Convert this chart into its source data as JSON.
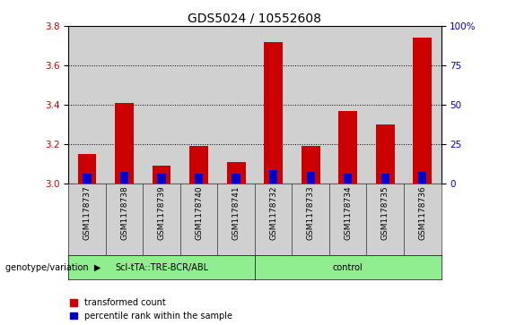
{
  "title": "GDS5024 / 10552608",
  "samples": [
    "GSM1178737",
    "GSM1178738",
    "GSM1178739",
    "GSM1178740",
    "GSM1178741",
    "GSM1178732",
    "GSM1178733",
    "GSM1178734",
    "GSM1178735",
    "GSM1178736"
  ],
  "red_values": [
    3.15,
    3.41,
    3.09,
    3.19,
    3.11,
    3.72,
    3.19,
    3.37,
    3.3,
    3.74
  ],
  "blue_values": [
    3.05,
    3.06,
    3.05,
    3.05,
    3.05,
    3.07,
    3.06,
    3.05,
    3.05,
    3.06
  ],
  "ymin": 3.0,
  "ymax": 3.8,
  "yticks": [
    3.0,
    3.2,
    3.4,
    3.6,
    3.8
  ],
  "y2ticks": [
    0,
    25,
    50,
    75,
    100
  ],
  "group1_label": "Scl-tTA::TRE-BCR/ABL",
  "group2_label": "control",
  "group1_count": 5,
  "group2_count": 5,
  "genotype_label": "genotype/variation",
  "legend1": "transformed count",
  "legend2": "percentile rank within the sample",
  "red_color": "#cc0000",
  "blue_color": "#0000cc",
  "bar_width": 0.5,
  "col_bg": "#d0d0d0",
  "group_label_bg": "#90ee90",
  "title_fontsize": 10,
  "tick_fontsize": 7.5,
  "sample_fontsize": 6.5
}
